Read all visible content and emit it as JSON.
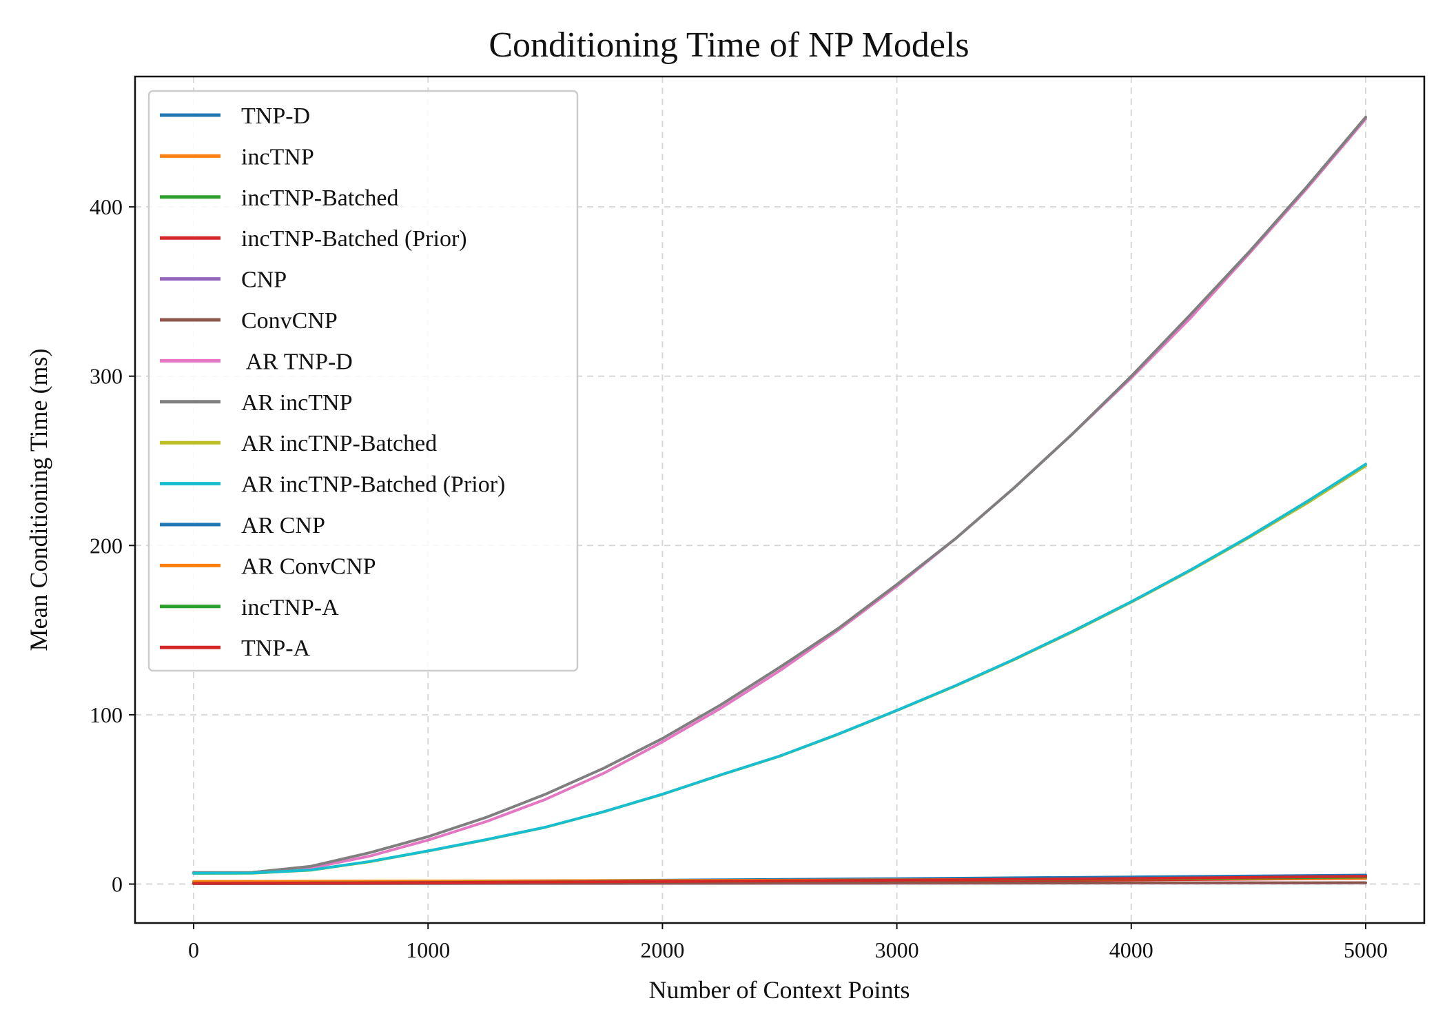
{
  "chart_data": {
    "type": "line",
    "title": "Conditioning Time of NP Models",
    "xlabel": "Number of Context Points",
    "ylabel": "Mean Conditioning Time (ms)",
    "xlim": [
      -250,
      5250
    ],
    "ylim": [
      -23,
      477
    ],
    "xticks": [
      0,
      1000,
      2000,
      3000,
      4000,
      5000
    ],
    "yticks": [
      0,
      100,
      200,
      300,
      400
    ],
    "grid": true,
    "legend_position": "top-left",
    "series": [
      {
        "name": "TNP-D",
        "color": "#1f77b4",
        "x": [
          0,
          1000,
          2000,
          3000,
          4000,
          5000
        ],
        "y": [
          0.6,
          1.2,
          1.9,
          2.7,
          3.5,
          4.5
        ]
      },
      {
        "name": "incTNP",
        "color": "#ff7f0e",
        "x": [
          0,
          1000,
          2000,
          3000,
          4000,
          5000
        ],
        "y": [
          1.3,
          1.5,
          1.9,
          2.3,
          2.8,
          3.4
        ]
      },
      {
        "name": "incTNP-Batched",
        "color": "#2ca02c",
        "x": [
          0,
          1000,
          2000,
          3000,
          4000,
          5000
        ],
        "y": [
          0.4,
          0.9,
          1.4,
          2.0,
          2.8,
          3.8
        ]
      },
      {
        "name": "incTNP-Batched (Prior)",
        "color": "#d62728",
        "x": [
          0,
          1000,
          2000,
          3000,
          4000,
          5000
        ],
        "y": [
          0.3,
          0.6,
          1.0,
          1.6,
          2.4,
          3.4
        ]
      },
      {
        "name": "CNP",
        "color": "#9467bd",
        "x": [
          0,
          1000,
          2000,
          3000,
          4000,
          5000
        ],
        "y": [
          0.2,
          0.3,
          0.4,
          0.5,
          0.6,
          0.7
        ]
      },
      {
        "name": "ConvCNP",
        "color": "#8c564b",
        "x": [
          0,
          1000,
          2000,
          3000,
          4000,
          5000
        ],
        "y": [
          0.3,
          0.4,
          0.5,
          0.6,
          0.7,
          0.8
        ]
      },
      {
        "name": " AR TNP-D",
        "color": "#e377c2",
        "x": [
          0,
          250,
          500,
          750,
          1000,
          1250,
          1500,
          1750,
          2000,
          2250,
          2500,
          2750,
          3000,
          3250,
          3500,
          3750,
          4000,
          4250,
          4500,
          4750,
          5000
        ],
        "y": [
          6.5,
          6.6,
          9.5,
          16.5,
          26,
          37,
          50,
          65.5,
          84,
          104,
          126,
          150,
          176,
          204,
          234,
          266,
          299,
          334,
          372,
          411,
          452
        ]
      },
      {
        "name": "AR incTNP",
        "color": "#7f7f7f",
        "x": [
          0,
          250,
          500,
          750,
          1000,
          1250,
          1500,
          1750,
          2000,
          2250,
          2500,
          2750,
          3000,
          3250,
          3500,
          3750,
          4000,
          4250,
          4500,
          4750,
          5000
        ],
        "y": [
          6.8,
          6.9,
          10.5,
          18.5,
          28,
          39.5,
          53,
          68.5,
          86,
          106,
          128,
          151,
          177,
          204,
          234,
          266,
          300,
          336,
          373,
          412,
          453
        ]
      },
      {
        "name": "AR incTNP-Batched",
        "color": "#bcbd22",
        "x": [
          0,
          250,
          500,
          750,
          1000,
          1250,
          1500,
          1750,
          2000,
          2250,
          2500,
          2750,
          3000,
          3250,
          3500,
          3750,
          4000,
          4250,
          4500,
          4750,
          5000
        ],
        "y": [
          6.3,
          6.4,
          8.2,
          13.2,
          19.5,
          26.2,
          33.5,
          42.7,
          53,
          64.5,
          75.5,
          88.5,
          102.5,
          117,
          132.5,
          149,
          166.5,
          185,
          204.5,
          225,
          247
        ]
      },
      {
        "name": "AR incTNP-Batched (Prior)",
        "color": "#17becf",
        "x": [
          0,
          250,
          500,
          750,
          1000,
          1250,
          1500,
          1750,
          2000,
          2250,
          2500,
          2750,
          3000,
          3250,
          3500,
          3750,
          4000,
          4250,
          4500,
          4750,
          5000
        ],
        "y": [
          6.4,
          6.5,
          8.3,
          13.3,
          19.6,
          26.3,
          33.6,
          42.8,
          53.1,
          64.6,
          75.6,
          88.6,
          102.6,
          117.2,
          132.8,
          149.3,
          166.8,
          185.3,
          205,
          226,
          248
        ]
      },
      {
        "name": "AR CNP",
        "color": "#1f77b4",
        "x": [
          0,
          1000,
          2000,
          3000,
          4000,
          5000
        ],
        "y": [
          0.8,
          1.5,
          2.3,
          3.2,
          4.2,
          5.3
        ]
      },
      {
        "name": "AR ConvCNP",
        "color": "#ff7f0e",
        "x": [
          0,
          1000,
          2000,
          3000,
          4000,
          5000
        ],
        "y": [
          1.6,
          1.8,
          2.1,
          2.5,
          3.0,
          3.5
        ]
      },
      {
        "name": "incTNP-A",
        "color": "#2ca02c",
        "x": [
          0,
          1000,
          2000,
          3000,
          4000,
          5000
        ],
        "y": [
          0.5,
          1.0,
          1.6,
          2.3,
          3.1,
          4.1
        ]
      },
      {
        "name": "TNP-A",
        "color": "#d62728",
        "x": [
          0,
          1000,
          2000,
          3000,
          4000,
          5000
        ],
        "y": [
          0.4,
          0.9,
          1.5,
          2.3,
          3.3,
          4.6
        ]
      }
    ]
  }
}
